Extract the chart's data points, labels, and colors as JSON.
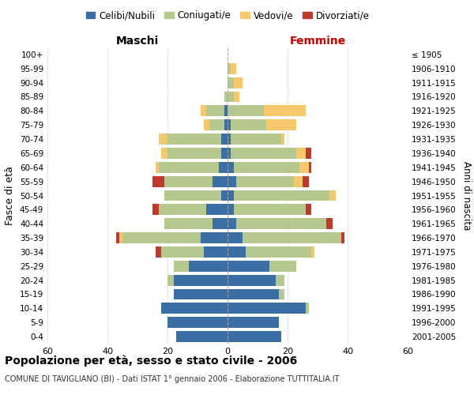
{
  "age_groups": [
    "0-4",
    "5-9",
    "10-14",
    "15-19",
    "20-24",
    "25-29",
    "30-34",
    "35-39",
    "40-44",
    "45-49",
    "50-54",
    "55-59",
    "60-64",
    "65-69",
    "70-74",
    "75-79",
    "80-84",
    "85-89",
    "90-94",
    "95-99",
    "100+"
  ],
  "birth_years": [
    "2001-2005",
    "1996-2000",
    "1991-1995",
    "1986-1990",
    "1981-1985",
    "1976-1980",
    "1971-1975",
    "1966-1970",
    "1961-1965",
    "1956-1960",
    "1951-1955",
    "1946-1950",
    "1941-1945",
    "1936-1940",
    "1931-1935",
    "1926-1930",
    "1921-1925",
    "1916-1920",
    "1911-1915",
    "1906-1910",
    "≤ 1905"
  ],
  "male": {
    "celibi": [
      17,
      20,
      22,
      18,
      18,
      13,
      8,
      9,
      5,
      7,
      2,
      5,
      3,
      2,
      2,
      1,
      1,
      0,
      0,
      0,
      0
    ],
    "coniugati": [
      0,
      0,
      0,
      0,
      2,
      5,
      14,
      26,
      16,
      16,
      19,
      16,
      20,
      18,
      18,
      5,
      6,
      1,
      0,
      0,
      0
    ],
    "vedovi": [
      0,
      0,
      0,
      0,
      0,
      0,
      0,
      1,
      0,
      0,
      0,
      0,
      1,
      2,
      3,
      2,
      2,
      0,
      0,
      0,
      0
    ],
    "divorziati": [
      0,
      0,
      0,
      0,
      0,
      0,
      2,
      1,
      0,
      2,
      0,
      4,
      0,
      0,
      0,
      0,
      0,
      0,
      0,
      0,
      0
    ]
  },
  "female": {
    "nubili": [
      18,
      17,
      26,
      17,
      16,
      14,
      6,
      5,
      3,
      2,
      2,
      3,
      2,
      1,
      1,
      1,
      0,
      0,
      0,
      0,
      0
    ],
    "coniugate": [
      0,
      0,
      1,
      2,
      3,
      9,
      22,
      33,
      30,
      24,
      32,
      19,
      22,
      22,
      17,
      12,
      12,
      2,
      2,
      1,
      0
    ],
    "vedove": [
      0,
      0,
      0,
      0,
      0,
      0,
      1,
      0,
      0,
      0,
      2,
      3,
      3,
      3,
      1,
      10,
      14,
      2,
      3,
      2,
      0
    ],
    "divorziate": [
      0,
      0,
      0,
      0,
      0,
      0,
      0,
      1,
      2,
      2,
      0,
      2,
      1,
      2,
      0,
      0,
      0,
      0,
      0,
      0,
      0
    ]
  },
  "colors": {
    "celibi_nubili": "#3a6ea5",
    "coniugati": "#b5c98e",
    "vedovi": "#f5c96b",
    "divorziati": "#c0392b"
  },
  "xlim": 60,
  "title": "Popolazione per età, sesso e stato civile - 2006",
  "subtitle": "COMUNE DI TAVIGLIANO (BI) - Dati ISTAT 1° gennaio 2006 - Elaborazione TUTTITALIA.IT",
  "xlabel_left": "Maschi",
  "xlabel_right": "Femmine",
  "ylabel_left": "Fasce di età",
  "ylabel_right": "Anni di nascita",
  "bg_color": "#ffffff",
  "grid_color": "#cccccc"
}
